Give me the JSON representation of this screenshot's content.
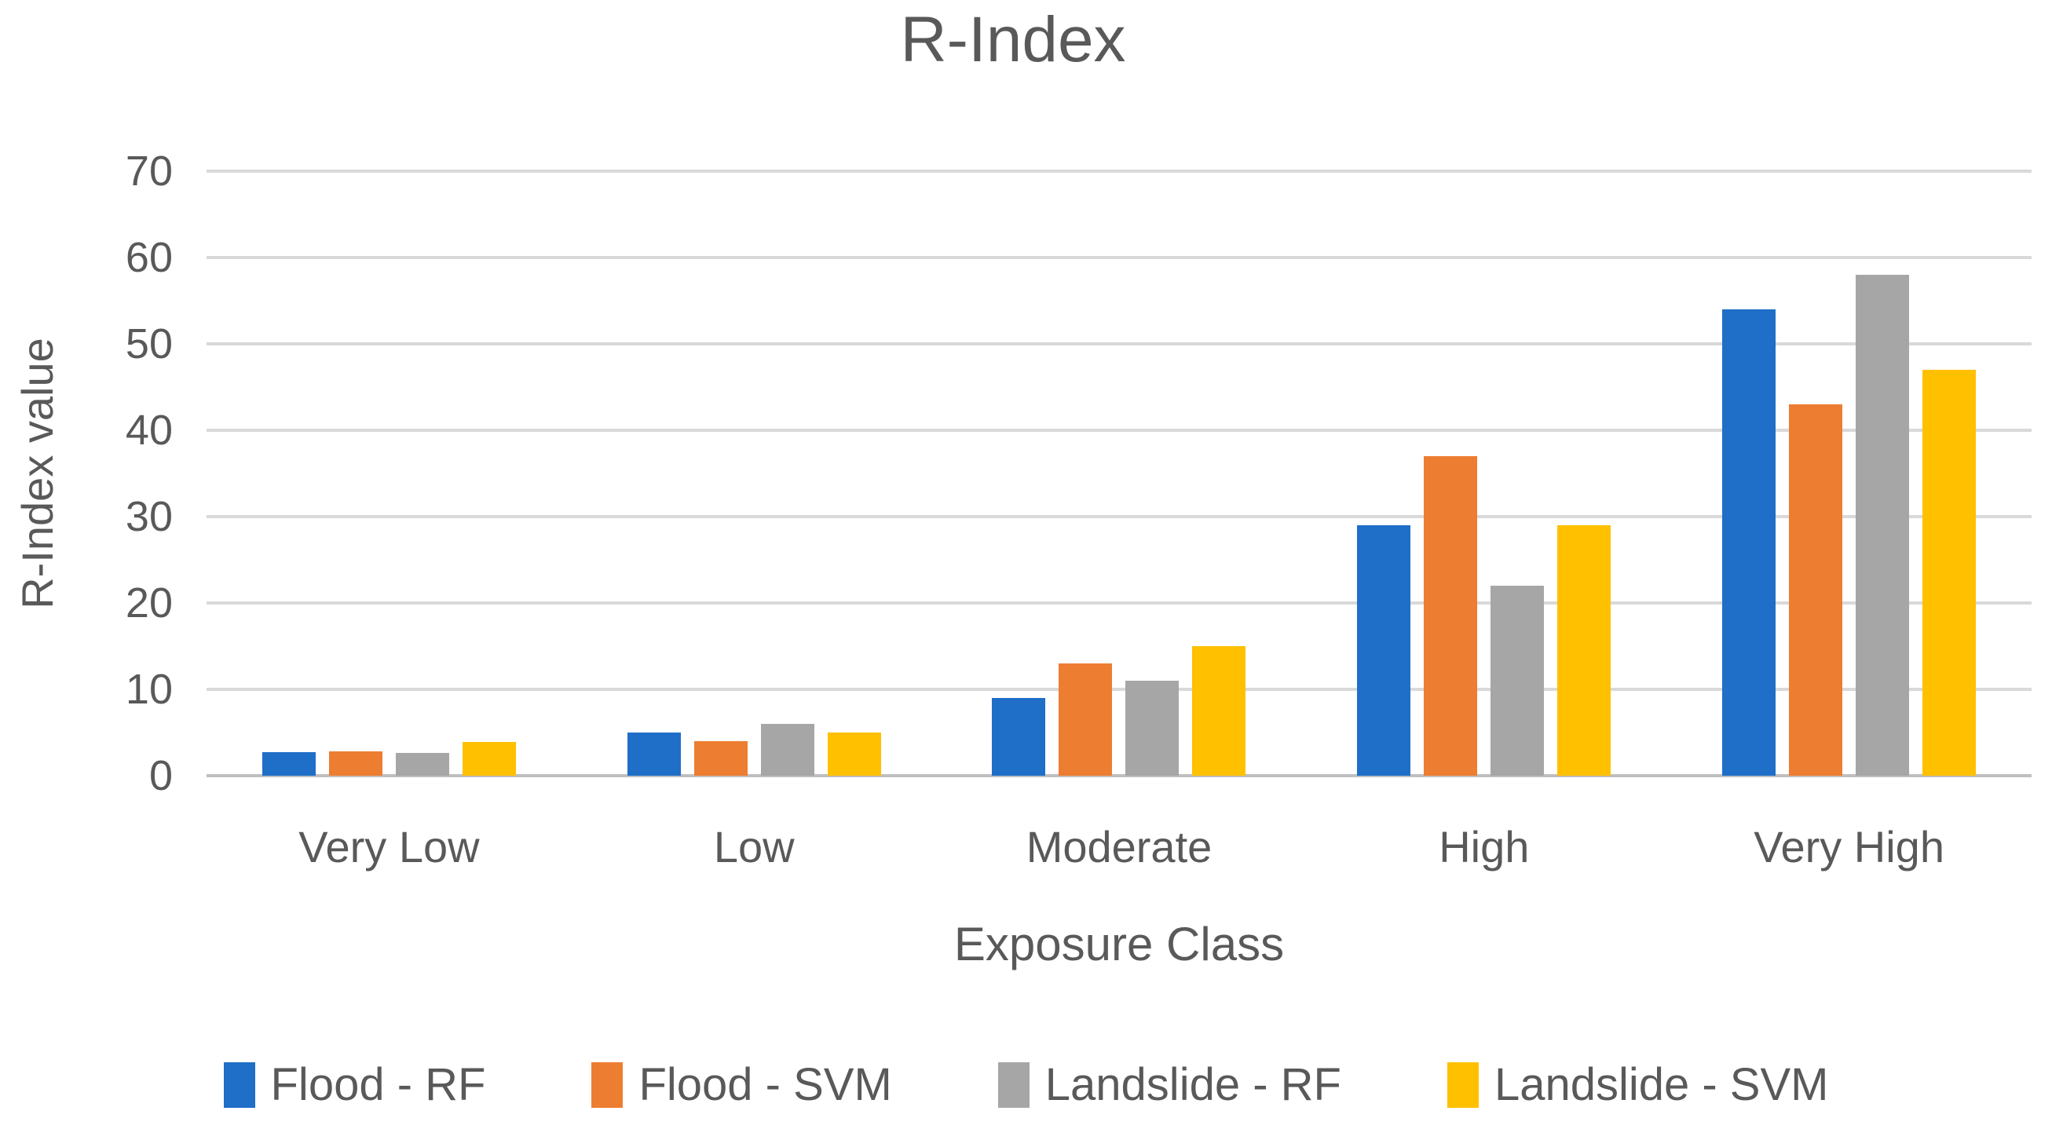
{
  "chart_data": {
    "type": "bar",
    "title": "R-Index",
    "xlabel": "Exposure Class",
    "ylabel": "R-Index value",
    "categories": [
      "Very Low",
      "Low",
      "Moderate",
      "High",
      "Very High"
    ],
    "series": [
      {
        "name": "Flood - RF",
        "color": "#1F6EC8",
        "values": [
          2.7,
          5,
          9,
          29,
          54
        ]
      },
      {
        "name": "Flood - SVM",
        "color": "#ED7D31",
        "values": [
          2.8,
          4,
          13,
          37,
          43
        ]
      },
      {
        "name": "Landslide - RF",
        "color": "#A6A6A6",
        "values": [
          2.6,
          6,
          11,
          22,
          58
        ]
      },
      {
        "name": "Landslide - SVM",
        "color": "#FFC000",
        "values": [
          3.9,
          5,
          15,
          29,
          47
        ]
      }
    ],
    "ylim": [
      0,
      70
    ],
    "ytick_step": 10,
    "yticks": [
      0,
      10,
      20,
      30,
      40,
      50,
      60,
      70
    ],
    "grid": true,
    "legend_position": "bottom"
  },
  "colors": {
    "text": "#595959",
    "gridline": "#D9D9D9",
    "axis_line": "#BFBFBF",
    "background": "#FFFFFF"
  }
}
